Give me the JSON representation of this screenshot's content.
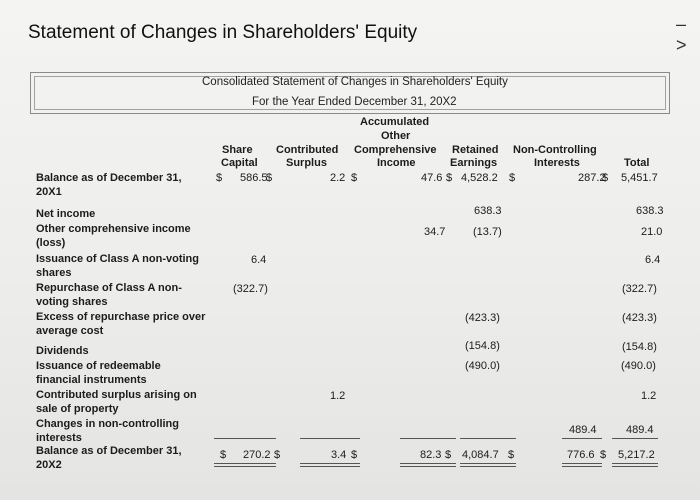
{
  "page": {
    "title": "Statement of Changes in Shareholders' Equity",
    "corner_mark": "– >"
  },
  "statement": {
    "heading_1": "Consolidated Statement of Changes in Shareholders' Equity",
    "heading_2": "For the Year Ended December 31, 20X2",
    "columns": {
      "share_capital": [
        "Share",
        "Capital"
      ],
      "contributed_surplus": [
        "Contributed",
        "Surplus"
      ],
      "aoci": [
        "Accumulated",
        "Other",
        "Comprehensive",
        "Income"
      ],
      "retained_earnings": [
        "Retained",
        "Earnings"
      ],
      "non_controlling": [
        "Non-Controlling",
        "Interests"
      ],
      "total": [
        "Total"
      ]
    },
    "currency": "$",
    "rows": {
      "opening": {
        "label": "Balance as of December 31, 20X1",
        "share_capital": "586.5",
        "contributed_surplus": "2.2",
        "aoci": "47.6",
        "retained_earnings": "4,528.2",
        "non_controlling": "287.2",
        "total": "5,451.7"
      },
      "net_income": {
        "label": "Net income",
        "retained_earnings": "638.3",
        "total": "638.3"
      },
      "oci": {
        "label": "Other comprehensive income (loss)",
        "aoci": "34.7",
        "retained_earnings": "(13.7)",
        "total": "21.0"
      },
      "issuance_a": {
        "label": "Issuance of Class A non-voting shares",
        "share_capital": "6.4",
        "total": "6.4"
      },
      "repurchase_a": {
        "label": "Repurchase of Class A non-voting shares",
        "share_capital": "(322.7)",
        "total": "(322.7)"
      },
      "excess_repurchase": {
        "label": "Excess of repurchase price over average cost",
        "retained_earnings": "(423.3)",
        "total": "(423.3)"
      },
      "dividends": {
        "label": "Dividends",
        "retained_earnings": "(154.8)",
        "total": "(154.8)"
      },
      "redeemable": {
        "label": "Issuance of redeemable financial instruments",
        "retained_earnings": "(490.0)",
        "total": "(490.0)"
      },
      "contrib_sale": {
        "label": "Contributed surplus arising on sale of property",
        "contributed_surplus": "1.2",
        "total": "1.2"
      },
      "nci_changes": {
        "label": "Changes in non-controlling interests",
        "non_controlling": "489.4",
        "total": "489.4"
      },
      "closing": {
        "label": "Balance as of December 31, 20X2",
        "share_capital": "270.2",
        "contributed_surplus": "3.4",
        "aoci": "82.3",
        "retained_earnings": "4,084.7",
        "non_controlling": "776.6",
        "total": "5,217.2"
      }
    }
  }
}
